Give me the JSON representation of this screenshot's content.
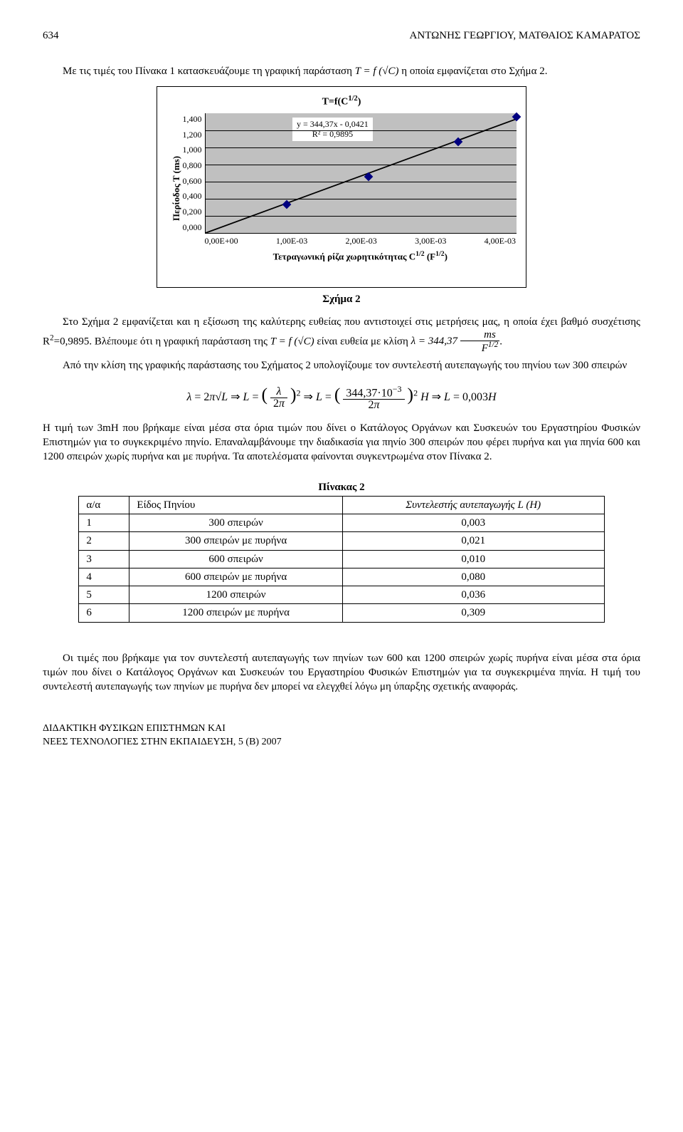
{
  "header": {
    "page_number": "634",
    "running_head": "ΑΝΤΩΝΗΣ ΓΕΩΡΓΙΟΥ, ΜΑΤΘΑΙΟΣ ΚΑΜΑΡΑΤΟΣ"
  },
  "paragraphs": {
    "p1_a": "Με τις τιμές του Πίνακα 1 κατασκευάζουμε τη γραφική παράσταση ",
    "p1_b": " η οποία εμφανίζεται στο Σχήμα 2.",
    "p2_a": "Στο Σχήμα 2 εμφανίζεται και η εξίσωση της καλύτερης ευθείας που αντιστοιχεί στις μετρήσεις μας, η οποία έχει βαθμό συσχέτισης R",
    "p2_b": "=0,9895. Βλέπουμε ότι η γραφική παράσταση της ",
    "p2_c": " είναι ευθεία με κλίση ",
    "p3": "Από την κλίση της γραφικής παράστασης του Σχήματος 2 υπολογίζουμε τον συντελεστή αυτεπαγωγής του πηνίου των 300 σπειρών",
    "p4": "Η τιμή των 3mH που βρήκαμε είναι μέσα στα όρια τιμών που δίνει ο Κατάλογος Οργάνων και Συσκευών του Εργαστηρίου Φυσικών Επιστημών για το συγκεκριμένο πηνίο. Επαναλαμβάνουμε την διαδικασία για πηνίο 300 σπειρών που φέρει πυρήνα και για πηνία 600 και 1200 σπειρών χωρίς πυρήνα και με πυρήνα. Τα αποτελέσματα φαίνονται συγκεντρωμένα στον Πίνακα 2.",
    "p5": "Οι τιμές που βρήκαμε για τον συντελεστή αυτεπαγωγής των πηνίων των 600 και 1200 σπειρών χωρίς πυρήνα είναι μέσα στα όρια τιμών που δίνει ο Κατάλογος Οργάνων και Συσκευών του Εργαστηρίου Φυσικών Επιστημών για τα συγκεκριμένα πηνία. Η τιμή του συντελεστή αυτεπαγωγής των πηνίων με πυρήνα δεν μπορεί να ελεγχθεί λόγω μη ύπαρξης σχετικής αναφοράς."
  },
  "inline_math": {
    "TfC": "T = f (√C)",
    "slope_expr": "λ = 344,37 ms / F^{1/2}",
    "eq_line": "λ = 2π√L ⇒ L = ( λ / 2π )² ⇒ L = ( 344,37·10⁻³ / 2π )² H ⇒ L = 0,003H"
  },
  "chart": {
    "title": "T=f(C^{1/2})",
    "trend_eq": "y = 344,37x - 0,0421",
    "r2_label": "R² = 0,9895",
    "ylabel": "Περίοδος Τ (ms)",
    "xlabel": "Τετραγωνική ρίζα χωρητικότητας C^{1/2} (F^{1/2})",
    "yticks": [
      "1,400",
      "1,200",
      "1,000",
      "0,800",
      "0,600",
      "0,400",
      "0,200",
      "0,000"
    ],
    "xticks": [
      "0,00E+00",
      "1,00E-03",
      "2,00E-03",
      "3,00E-03",
      "4,00E-03"
    ],
    "ylim": [
      0,
      1.4
    ],
    "xlim": [
      0,
      0.004
    ],
    "points": [
      {
        "x": 0.00105,
        "y": 0.33
      },
      {
        "x": 0.0021,
        "y": 0.66
      },
      {
        "x": 0.00325,
        "y": 1.07
      },
      {
        "x": 0.004,
        "y": 1.36
      }
    ],
    "bg_color": "#c0c0c0",
    "marker_color": "#000080",
    "line_color": "#000000",
    "box_bg": "#ffffff"
  },
  "fig_caption": "Σχήμα 2",
  "table": {
    "caption": "Πίνακας 2",
    "headers": [
      "α/α",
      "Είδος Πηνίου",
      "Συντελεστής αυτεπαγωγής L (H)"
    ],
    "rows": [
      [
        "1",
        "300 σπειρών",
        "0,003"
      ],
      [
        "2",
        "300 σπειρών με πυρήνα",
        "0,021"
      ],
      [
        "3",
        "600 σπειρών",
        "0,010"
      ],
      [
        "4",
        "600 σπειρών με πυρήνα",
        "0,080"
      ],
      [
        "5",
        "1200 σπειρών",
        "0,036"
      ],
      [
        "6",
        "1200 σπειρών με πυρήνα",
        "0,309"
      ]
    ]
  },
  "footer": {
    "line1": "ΔΙΔΑΚΤΙΚΗ ΦΥΣΙΚΩΝ ΕΠΙΣΤΗΜΩΝ ΚΑΙ",
    "line2": "ΝΕΕΣ ΤΕΧΝΟΛΟΓΙΕΣ ΣΤΗΝ ΕΚΠΑΙΔΕΥΣΗ, 5 (B) 2007"
  }
}
